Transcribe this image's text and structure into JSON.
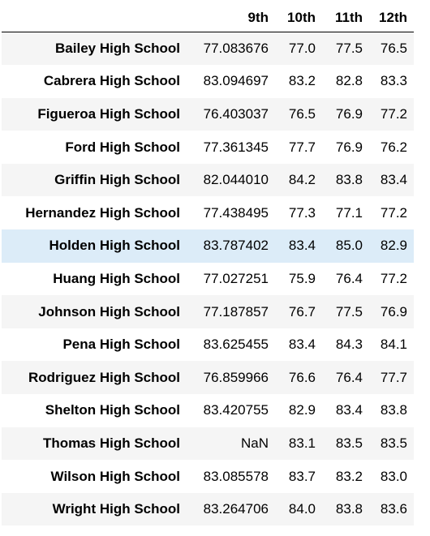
{
  "table": {
    "index_header": "",
    "columns": [
      "9th",
      "10th",
      "11th",
      "12th"
    ],
    "rows": [
      {
        "school": "Bailey High School",
        "values": [
          "77.083676",
          "77.0",
          "77.5",
          "76.5"
        ]
      },
      {
        "school": "Cabrera High School",
        "values": [
          "83.094697",
          "83.2",
          "82.8",
          "83.3"
        ]
      },
      {
        "school": "Figueroa High School",
        "values": [
          "76.403037",
          "76.5",
          "76.9",
          "77.2"
        ]
      },
      {
        "school": "Ford High School",
        "values": [
          "77.361345",
          "77.7",
          "76.9",
          "76.2"
        ]
      },
      {
        "school": "Griffin High School",
        "values": [
          "82.044010",
          "84.2",
          "83.8",
          "83.4"
        ]
      },
      {
        "school": "Hernandez High School",
        "values": [
          "77.438495",
          "77.3",
          "77.1",
          "77.2"
        ]
      },
      {
        "school": "Holden High School",
        "values": [
          "83.787402",
          "83.4",
          "85.0",
          "82.9"
        ]
      },
      {
        "school": "Huang High School",
        "values": [
          "77.027251",
          "75.9",
          "76.4",
          "77.2"
        ]
      },
      {
        "school": "Johnson High School",
        "values": [
          "77.187857",
          "76.7",
          "77.5",
          "76.9"
        ]
      },
      {
        "school": "Pena High School",
        "values": [
          "83.625455",
          "83.4",
          "84.3",
          "84.1"
        ]
      },
      {
        "school": "Rodriguez High School",
        "values": [
          "76.859966",
          "76.6",
          "76.4",
          "77.7"
        ]
      },
      {
        "school": "Shelton High School",
        "values": [
          "83.420755",
          "82.9",
          "83.4",
          "83.8"
        ]
      },
      {
        "school": "Thomas High School",
        "values": [
          "NaN",
          "83.1",
          "83.5",
          "83.5"
        ]
      },
      {
        "school": "Wilson High School",
        "values": [
          "83.085578",
          "83.7",
          "83.2",
          "83.0"
        ]
      },
      {
        "school": "Wright High School",
        "values": [
          "83.264706",
          "84.0",
          "83.8",
          "83.6"
        ]
      }
    ],
    "hovered_row_index": 6
  },
  "colors": {
    "stripe": "#f5f5f5",
    "hover": "#dcecf8",
    "header_rule": "#000000"
  }
}
